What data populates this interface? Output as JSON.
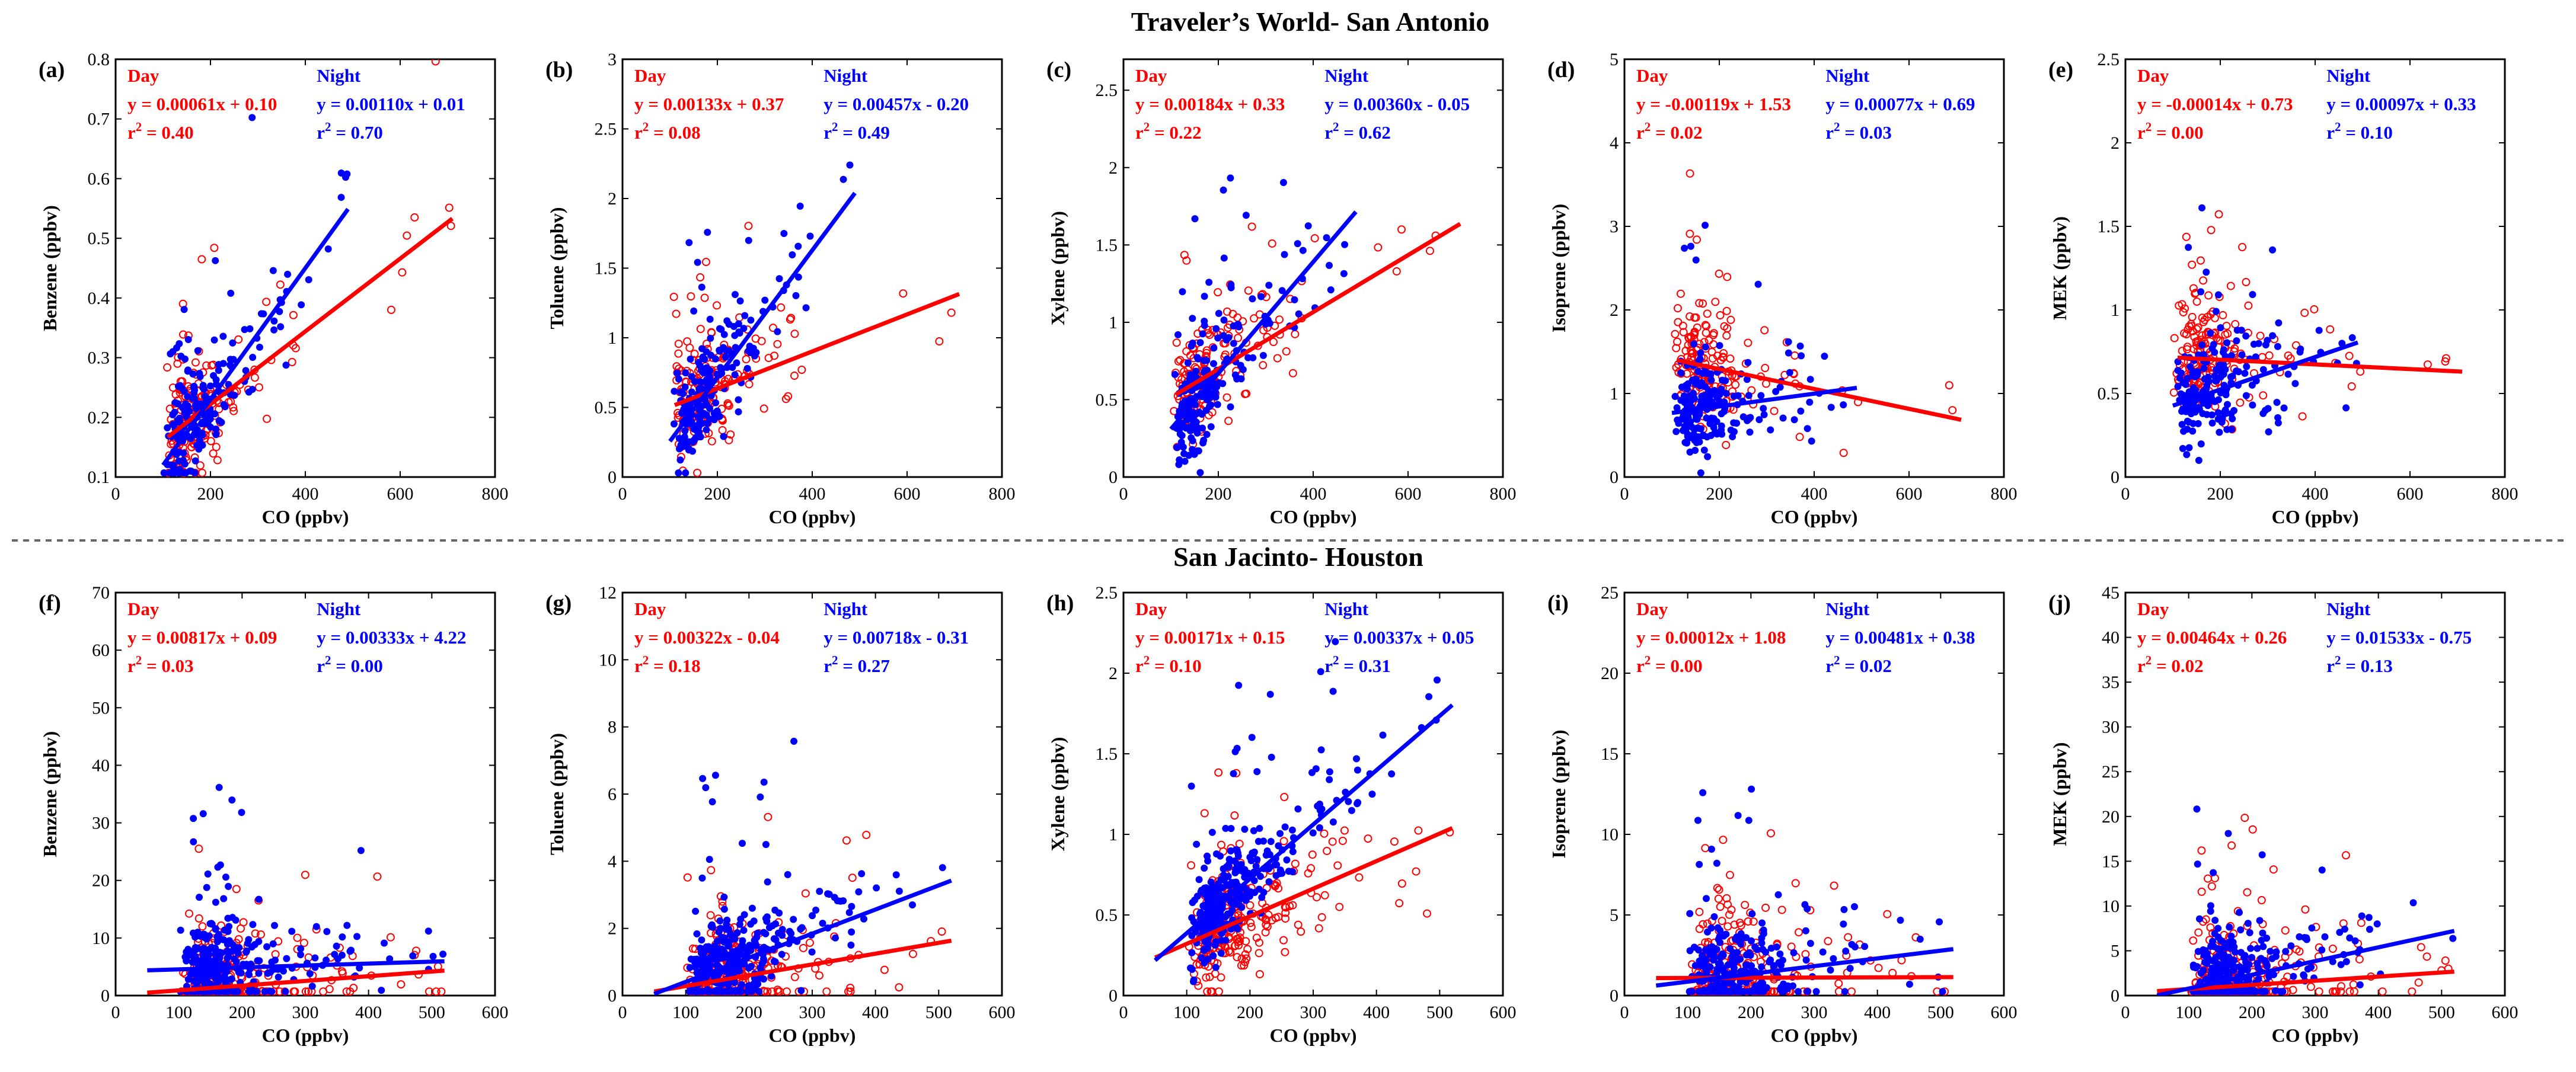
{
  "titles": {
    "top": "Traveler’s World- San Antonio",
    "bottom": "San Jacinto- Houston"
  },
  "legend_words": {
    "day": "Day",
    "night": "Night"
  },
  "colors": {
    "day": "#ff0000",
    "night": "#0000ff",
    "axis": "#000000",
    "divider": "#666666"
  },
  "chart_data": [
    {
      "id": "a",
      "panel_label": "(a)",
      "type": "scatter",
      "xlabel": "CO (ppbv)",
      "ylabel": "Benzene (ppbv)",
      "xlim": [
        0,
        800
      ],
      "ylim": [
        0.1,
        0.8
      ],
      "xticks": [
        0,
        200,
        400,
        600,
        800
      ],
      "yticks": [
        0.1,
        0.2,
        0.3,
        0.4,
        0.5,
        0.6,
        0.7,
        0.8
      ],
      "xtick_labels": [
        "0",
        "200",
        "400",
        "600",
        "800"
      ],
      "ytick_labels": [
        "0.1",
        "0.2",
        "0.3",
        "0.4",
        "0.5",
        "0.6",
        "0.7",
        "0.8"
      ],
      "day": {
        "eq": "y = 0.00061x + 0.10",
        "r2": "= 0.40",
        "slope": 0.00061,
        "intercept": 0.1,
        "fit_x": [
          110,
          710
        ]
      },
      "night": {
        "eq": "y = 0.00110x + 0.01",
        "r2": "= 0.70",
        "slope": 0.0011,
        "intercept": 0.01,
        "fit_x": [
          100,
          490
        ]
      }
    },
    {
      "id": "b",
      "panel_label": "(b)",
      "type": "scatter",
      "xlabel": "CO (ppbv)",
      "ylabel": "Toluene (ppbv)",
      "xlim": [
        0,
        800
      ],
      "ylim": [
        0,
        3
      ],
      "xticks": [
        0,
        200,
        400,
        600,
        800
      ],
      "yticks": [
        0,
        0.5,
        1,
        1.5,
        2,
        2.5,
        3
      ],
      "xtick_labels": [
        "0",
        "200",
        "400",
        "600",
        "800"
      ],
      "ytick_labels": [
        "0",
        "0.5",
        "1",
        "1.5",
        "2",
        "2.5",
        "3"
      ],
      "day": {
        "eq": "y = 0.00133x + 0.37",
        "r2": "= 0.08",
        "slope": 0.00133,
        "intercept": 0.37,
        "fit_x": [
          110,
          710
        ]
      },
      "night": {
        "eq": "y = 0.00457x - 0.20",
        "r2": "= 0.49",
        "slope": 0.00457,
        "intercept": -0.2,
        "fit_x": [
          100,
          490
        ]
      }
    },
    {
      "id": "c",
      "panel_label": "(c)",
      "type": "scatter",
      "xlabel": "CO (ppbv)",
      "ylabel": "Xylene (ppbv)",
      "xlim": [
        0,
        800
      ],
      "ylim": [
        0,
        2.7
      ],
      "xticks": [
        0,
        200,
        400,
        600,
        800
      ],
      "yticks": [
        0,
        0.5,
        1,
        1.5,
        2,
        2.5
      ],
      "xtick_labels": [
        "0",
        "200",
        "400",
        "600",
        "800"
      ],
      "ytick_labels": [
        "0",
        "0.5",
        "1",
        "1.5",
        "2",
        "2.5"
      ],
      "day": {
        "eq": "y = 0.00184x + 0.33",
        "r2": "= 0.22",
        "slope": 0.00184,
        "intercept": 0.33,
        "fit_x": [
          110,
          710
        ]
      },
      "night": {
        "eq": "y = 0.00360x - 0.05",
        "r2": "= 0.62",
        "slope": 0.0036,
        "intercept": -0.05,
        "fit_x": [
          100,
          490
        ]
      }
    },
    {
      "id": "d",
      "panel_label": "(d)",
      "type": "scatter",
      "xlabel": "CO (ppbv)",
      "ylabel": "Isoprene (ppbv)",
      "xlim": [
        0,
        800
      ],
      "ylim": [
        0,
        5
      ],
      "xticks": [
        0,
        200,
        400,
        600,
        800
      ],
      "yticks": [
        0,
        1,
        2,
        3,
        4,
        5
      ],
      "xtick_labels": [
        "0",
        "200",
        "400",
        "600",
        "800"
      ],
      "ytick_labels": [
        "0",
        "1",
        "2",
        "3",
        "4",
        "5"
      ],
      "day": {
        "eq": "y = -0.00119x + 1.53",
        "r2": "= 0.02",
        "slope": -0.00119,
        "intercept": 1.53,
        "fit_x": [
          110,
          710
        ]
      },
      "night": {
        "eq": "y = 0.00077x + 0.69",
        "r2": "= 0.03",
        "slope": 0.00077,
        "intercept": 0.69,
        "fit_x": [
          100,
          490
        ]
      }
    },
    {
      "id": "e",
      "panel_label": "(e)",
      "type": "scatter",
      "xlabel": "CO (ppbv)",
      "ylabel": "MEK (ppbv)",
      "xlim": [
        0,
        800
      ],
      "ylim": [
        0,
        2.5
      ],
      "xticks": [
        0,
        200,
        400,
        600,
        800
      ],
      "yticks": [
        0,
        0.5,
        1,
        1.5,
        2,
        2.5
      ],
      "xtick_labels": [
        "0",
        "200",
        "400",
        "600",
        "800"
      ],
      "ytick_labels": [
        "0",
        "0.5",
        "1",
        "1.5",
        "2",
        "2.5"
      ],
      "day": {
        "eq": "y = -0.00014x + 0.73",
        "r2": "= 0.00",
        "slope": -0.00014,
        "intercept": 0.73,
        "fit_x": [
          110,
          710
        ]
      },
      "night": {
        "eq": "y = 0.00097x + 0.33",
        "r2": "= 0.10",
        "slope": 0.00097,
        "intercept": 0.33,
        "fit_x": [
          100,
          490
        ]
      }
    },
    {
      "id": "f",
      "panel_label": "(f)",
      "type": "scatter",
      "xlabel": "CO (ppbv)",
      "ylabel": "Benzene (ppbv)",
      "xlim": [
        0,
        600
      ],
      "ylim": [
        0,
        70
      ],
      "xticks": [
        0,
        100,
        200,
        300,
        400,
        500,
        600
      ],
      "yticks": [
        0,
        10,
        20,
        30,
        40,
        50,
        60,
        70
      ],
      "xtick_labels": [
        "0",
        "100",
        "200",
        "300",
        "400",
        "500",
        "600"
      ],
      "ytick_labels": [
        "0",
        "10",
        "20",
        "30",
        "40",
        "50",
        "60",
        "70"
      ],
      "day": {
        "eq": "y = 0.00817x + 0.09",
        "r2": "= 0.03",
        "slope": 0.00817,
        "intercept": 0.09,
        "fit_x": [
          50,
          520
        ]
      },
      "night": {
        "eq": "y = 0.00333x + 4.22",
        "r2": "= 0.00",
        "slope": 0.00333,
        "intercept": 4.22,
        "fit_x": [
          50,
          520
        ]
      }
    },
    {
      "id": "g",
      "panel_label": "(g)",
      "type": "scatter",
      "xlabel": "CO (ppbv)",
      "ylabel": "Toluene (ppbv)",
      "xlim": [
        0,
        600
      ],
      "ylim": [
        0,
        12
      ],
      "xticks": [
        0,
        100,
        200,
        300,
        400,
        500,
        600
      ],
      "yticks": [
        0,
        2,
        4,
        6,
        8,
        10,
        12
      ],
      "xtick_labels": [
        "0",
        "100",
        "200",
        "300",
        "400",
        "500",
        "600"
      ],
      "ytick_labels": [
        "0",
        "2",
        "4",
        "6",
        "8",
        "10",
        "12"
      ],
      "day": {
        "eq": "y = 0.00322x - 0.04",
        "r2": "= 0.18",
        "slope": 0.00322,
        "intercept": -0.04,
        "fit_x": [
          50,
          520
        ]
      },
      "night": {
        "eq": "y = 0.00718x - 0.31",
        "r2": "= 0.27",
        "slope": 0.00718,
        "intercept": -0.31,
        "fit_x": [
          50,
          520
        ]
      }
    },
    {
      "id": "h",
      "panel_label": "(h)",
      "type": "scatter",
      "xlabel": "CO (ppbv)",
      "ylabel": "Xylene (ppbv)",
      "xlim": [
        0,
        600
      ],
      "ylim": [
        0,
        2.5
      ],
      "xticks": [
        0,
        100,
        200,
        300,
        400,
        500,
        600
      ],
      "yticks": [
        0,
        0.5,
        1,
        1.5,
        2,
        2.5
      ],
      "xtick_labels": [
        "0",
        "100",
        "200",
        "300",
        "400",
        "500",
        "600"
      ],
      "ytick_labels": [
        "0",
        "0.5",
        "1",
        "1.5",
        "2",
        "2.5"
      ],
      "day": {
        "eq": "y = 0.00171x + 0.15",
        "r2": "= 0.10",
        "slope": 0.00171,
        "intercept": 0.15,
        "fit_x": [
          50,
          520
        ]
      },
      "night": {
        "eq": "y = 0.00337x + 0.05",
        "r2": "= 0.31",
        "slope": 0.00337,
        "intercept": 0.05,
        "fit_x": [
          50,
          520
        ]
      }
    },
    {
      "id": "i",
      "panel_label": "(i)",
      "type": "scatter",
      "xlabel": "CO (ppbv)",
      "ylabel": "Isoprene (ppbv)",
      "xlim": [
        0,
        600
      ],
      "ylim": [
        0,
        25
      ],
      "xticks": [
        0,
        100,
        200,
        300,
        400,
        500,
        600
      ],
      "yticks": [
        0,
        5,
        10,
        15,
        20,
        25
      ],
      "xtick_labels": [
        "0",
        "100",
        "200",
        "300",
        "400",
        "500",
        "600"
      ],
      "ytick_labels": [
        "0",
        "5",
        "10",
        "15",
        "20",
        "25"
      ],
      "day": {
        "eq": "y = 0.00012x + 1.08",
        "r2": "= 0.00",
        "slope": 0.00012,
        "intercept": 1.08,
        "fit_x": [
          50,
          520
        ]
      },
      "night": {
        "eq": "y = 0.00481x + 0.38",
        "r2": "= 0.02",
        "slope": 0.00481,
        "intercept": 0.38,
        "fit_x": [
          50,
          520
        ]
      }
    },
    {
      "id": "j",
      "panel_label": "(j)",
      "type": "scatter",
      "xlabel": "CO (ppbv)",
      "ylabel": "MEK (ppbv)",
      "xlim": [
        0,
        600
      ],
      "ylim": [
        0,
        45
      ],
      "xticks": [
        0,
        100,
        200,
        300,
        400,
        500,
        600
      ],
      "yticks": [
        0,
        5,
        10,
        15,
        20,
        25,
        30,
        35,
        40,
        45
      ],
      "xtick_labels": [
        "0",
        "100",
        "200",
        "300",
        "400",
        "500",
        "600"
      ],
      "ytick_labels": [
        "0",
        "5",
        "10",
        "15",
        "20",
        "25",
        "30",
        "35",
        "40",
        "45"
      ],
      "day": {
        "eq": "y = 0.00464x + 0.26",
        "r2": "= 0.02",
        "slope": 0.00464,
        "intercept": 0.26,
        "fit_x": [
          50,
          520
        ]
      },
      "night": {
        "eq": "y = 0.01533x - 0.75",
        "r2": "= 0.13",
        "slope": 0.01533,
        "intercept": -0.75,
        "fit_x": [
          50,
          520
        ]
      }
    }
  ]
}
